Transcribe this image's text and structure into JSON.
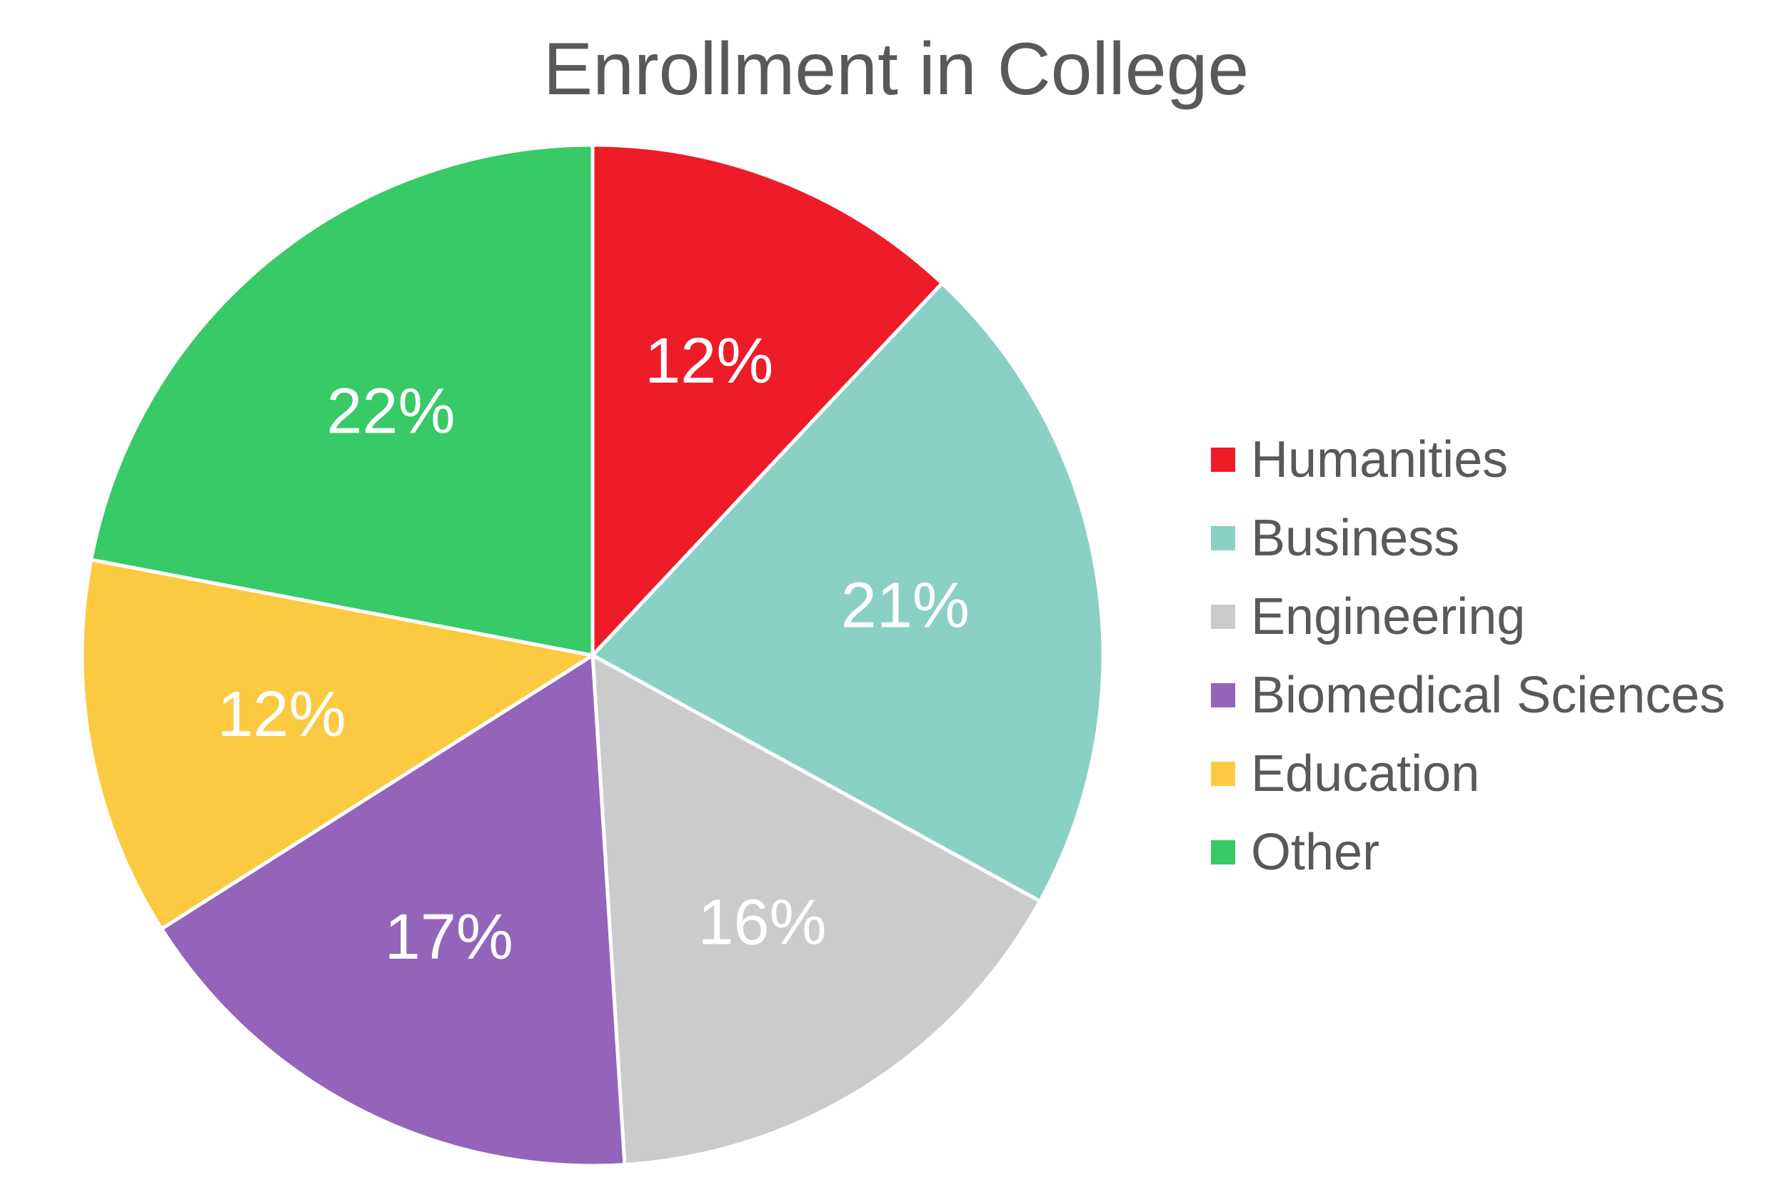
{
  "chart_data": {
    "type": "pie",
    "title": "Enrollment in College",
    "categories": [
      "Humanities",
      "Business",
      "Engineering",
      "Biomedical Sciences",
      "Education",
      "Other"
    ],
    "values": [
      12,
      21,
      16,
      17,
      12,
      22
    ],
    "value_labels": [
      "12%",
      "21%",
      "16%",
      "17%",
      "12%",
      "22%"
    ],
    "colors": [
      "#ED1C28",
      "#8BD0C5",
      "#CBCBCB",
      "#9464BA",
      "#FBCA41",
      "#37CA67"
    ],
    "start_angle": "12 o'clock",
    "direction": "clockwise",
    "legend": {
      "position": "right",
      "entries": [
        "Humanities",
        "Business",
        "Engineering",
        "Biomedical Sciences",
        "Education",
        "Other"
      ]
    }
  }
}
